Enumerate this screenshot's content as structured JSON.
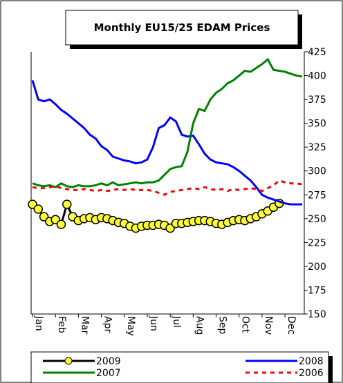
{
  "chart_data": {
    "type": "line",
    "title": "Monthly EU15/25 EDAM Prices",
    "categories": [
      "Jan",
      null,
      null,
      null,
      "Feb",
      null,
      null,
      null,
      "Mar",
      null,
      null,
      null,
      "Apr",
      null,
      null,
      null,
      "May",
      null,
      null,
      null,
      "Jun",
      null,
      null,
      null,
      "Jul",
      null,
      null,
      null,
      "Aug",
      null,
      null,
      null,
      "Sep",
      null,
      null,
      null,
      "Oct",
      null,
      null,
      null,
      "Nov",
      null,
      null,
      null,
      "Dec",
      null,
      null,
      null
    ],
    "series": [
      {
        "name": "2009",
        "color": "#000000",
        "marker_color": "#ffff33",
        "markers": true,
        "values": [
          265,
          260,
          252,
          247,
          249,
          244,
          265,
          252,
          248,
          250,
          251,
          249,
          251,
          250,
          248,
          246,
          245,
          242,
          240,
          242,
          243,
          243,
          244,
          243,
          240,
          245,
          245,
          246,
          247,
          248,
          248,
          247,
          245,
          244,
          246,
          248,
          249,
          248,
          250,
          252,
          255,
          258,
          262,
          266,
          null,
          null,
          null,
          null
        ]
      },
      {
        "name": "2008",
        "color": "#0000ff",
        "values": [
          395,
          375,
          373,
          375,
          370,
          364,
          360,
          355,
          350,
          345,
          338,
          334,
          326,
          322,
          315,
          313,
          311,
          310,
          308,
          309,
          312,
          325,
          345,
          348,
          356,
          352,
          338,
          336,
          337,
          328,
          318,
          312,
          309,
          308,
          307,
          304,
          300,
          295,
          290,
          283,
          275,
          272,
          270,
          268,
          266,
          265,
          265,
          265
        ]
      },
      {
        "name": "2007",
        "color": "#008000",
        "values": [
          287,
          285,
          284,
          285,
          283,
          287,
          284,
          283,
          285,
          284,
          284,
          285,
          287,
          285,
          288,
          285,
          286,
          287,
          288,
          287,
          288,
          288,
          290,
          296,
          302,
          304,
          305,
          320,
          350,
          365,
          363,
          375,
          382,
          386,
          392,
          395,
          400,
          405,
          404,
          408,
          412,
          417,
          406,
          405,
          404,
          402,
          400,
          399
        ]
      },
      {
        "name": "2006",
        "color": "#ff0000",
        "dashed": true,
        "values": [
          283,
          282,
          282,
          283,
          284,
          282,
          281,
          280,
          280,
          281,
          280,
          279,
          280,
          279,
          280,
          281,
          280,
          281,
          280,
          280,
          280,
          279,
          277,
          275,
          278,
          279,
          280,
          281,
          282,
          281,
          283,
          281,
          280,
          281,
          279,
          281,
          280,
          281,
          282,
          281,
          279,
          282,
          285,
          290,
          288,
          287,
          287,
          286
        ]
      }
    ],
    "ylim": [
      150,
      425
    ],
    "yticks": [
      150,
      175,
      200,
      225,
      250,
      275,
      300,
      325,
      350,
      375,
      400,
      425
    ],
    "y_axis_side": "right",
    "grid": false,
    "legend": "bottom"
  }
}
